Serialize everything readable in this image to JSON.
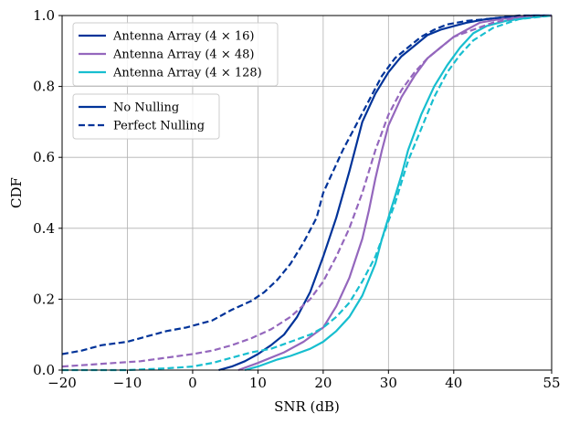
{
  "chart_data": {
    "type": "line",
    "title": "",
    "xlabel": "SNR (dB)",
    "ylabel": "CDF",
    "xlim": [
      -20,
      55
    ],
    "ylim": [
      0,
      1
    ],
    "xticks": [
      -20,
      -10,
      0,
      10,
      20,
      30,
      40,
      55
    ],
    "xtick_labels": [
      "−20",
      "−10",
      "0",
      "10",
      "20",
      "30",
      "40",
      "55"
    ],
    "yticks": [
      0,
      0.2,
      0.4,
      0.6,
      0.8,
      1.0
    ],
    "ytick_labels": [
      "0.0",
      "0.2",
      "0.4",
      "0.6",
      "0.8",
      "1.0"
    ],
    "grid": true,
    "legend_array": {
      "placement": "top-left",
      "entries": [
        {
          "label": "Antenna Array (4 × 16)",
          "color": "#003399"
        },
        {
          "label": "Antenna Array (4 × 48)",
          "color": "#9467bd"
        },
        {
          "label": "Antenna Array (4 × 128)",
          "color": "#17becf"
        }
      ]
    },
    "legend_nulling": {
      "placement": "upper-left",
      "entries": [
        {
          "label": "No Nulling",
          "style": "solid",
          "color": "#003399"
        },
        {
          "label": "Perfect Nulling",
          "style": "dashed",
          "color": "#003399"
        }
      ]
    },
    "series": [
      {
        "name": "Antenna Array (4 × 16) - No Nulling",
        "color": "#003399",
        "dash": false,
        "x": [
          4,
          6,
          8,
          10,
          12,
          14,
          16,
          18,
          20,
          22,
          24,
          25,
          26,
          28,
          30,
          32,
          34,
          36,
          38,
          40,
          42,
          45,
          48,
          52,
          55
        ],
        "y": [
          0.0,
          0.01,
          0.025,
          0.045,
          0.07,
          0.1,
          0.15,
          0.22,
          0.32,
          0.43,
          0.56,
          0.63,
          0.7,
          0.78,
          0.84,
          0.885,
          0.915,
          0.945,
          0.96,
          0.97,
          0.98,
          0.99,
          0.995,
          1.0,
          1.0
        ]
      },
      {
        "name": "Antenna Array (4 × 48) - No Nulling",
        "color": "#9467bd",
        "dash": false,
        "x": [
          7,
          10,
          14,
          17,
          20,
          22,
          24,
          26,
          27,
          28,
          29,
          30,
          32,
          34,
          36,
          38,
          40,
          42,
          44,
          47,
          50,
          55
        ],
        "y": [
          0.0,
          0.02,
          0.05,
          0.08,
          0.12,
          0.18,
          0.26,
          0.37,
          0.45,
          0.54,
          0.62,
          0.69,
          0.77,
          0.83,
          0.88,
          0.91,
          0.94,
          0.96,
          0.98,
          0.99,
          0.995,
          1.0
        ]
      },
      {
        "name": "Antenna Array (4 × 128) - No Nulling",
        "color": "#17becf",
        "dash": false,
        "x": [
          8,
          10,
          13,
          15,
          18,
          20,
          22,
          24,
          26,
          28,
          29,
          30,
          31,
          32,
          33,
          35,
          37,
          39,
          41,
          43,
          45,
          48,
          52,
          55
        ],
        "y": [
          0.0,
          0.01,
          0.03,
          0.04,
          0.06,
          0.08,
          0.11,
          0.15,
          0.21,
          0.3,
          0.37,
          0.43,
          0.49,
          0.55,
          0.62,
          0.72,
          0.8,
          0.86,
          0.91,
          0.95,
          0.97,
          0.985,
          0.995,
          1.0
        ]
      },
      {
        "name": "Antenna Array (4 × 16) - Perfect Nulling",
        "color": "#003399",
        "dash": true,
        "x": [
          -20,
          -17,
          -14,
          -10,
          -7,
          -4,
          -1,
          0,
          3,
          6,
          9,
          11,
          13,
          15,
          17,
          19,
          20,
          21,
          23,
          25,
          27,
          29,
          31,
          33,
          35,
          37,
          39,
          42,
          45,
          50,
          55
        ],
        "y": [
          0.045,
          0.055,
          0.07,
          0.08,
          0.095,
          0.11,
          0.12,
          0.125,
          0.14,
          0.17,
          0.195,
          0.22,
          0.255,
          0.3,
          0.36,
          0.43,
          0.5,
          0.54,
          0.62,
          0.69,
          0.76,
          0.83,
          0.88,
          0.91,
          0.94,
          0.96,
          0.975,
          0.985,
          0.99,
          1.0,
          1.0
        ]
      },
      {
        "name": "Antenna Array (4 × 48) - Perfect Nulling",
        "color": "#9467bd",
        "dash": true,
        "x": [
          -20,
          -16,
          -12,
          -8,
          -4,
          0,
          3,
          6,
          9,
          12,
          15,
          18,
          20,
          22,
          24,
          26,
          28,
          30,
          32,
          34,
          36,
          38,
          40,
          43,
          46,
          50,
          55
        ],
        "y": [
          0.01,
          0.015,
          0.02,
          0.025,
          0.035,
          0.045,
          0.055,
          0.07,
          0.09,
          0.115,
          0.15,
          0.2,
          0.25,
          0.32,
          0.4,
          0.5,
          0.62,
          0.72,
          0.79,
          0.84,
          0.88,
          0.91,
          0.94,
          0.96,
          0.98,
          0.995,
          1.0
        ]
      },
      {
        "name": "Antenna Array (4 × 128) - Perfect Nulling",
        "color": "#17becf",
        "dash": true,
        "x": [
          -20,
          -10,
          -4,
          0,
          3,
          6,
          9,
          12,
          15,
          18,
          20,
          22,
          24,
          26,
          28,
          29,
          30,
          31,
          32,
          33,
          35,
          37,
          39,
          41,
          43,
          46,
          50,
          55
        ],
        "y": [
          0.0,
          0.0,
          0.005,
          0.01,
          0.02,
          0.035,
          0.05,
          0.06,
          0.08,
          0.1,
          0.12,
          0.15,
          0.19,
          0.25,
          0.32,
          0.37,
          0.42,
          0.47,
          0.53,
          0.59,
          0.68,
          0.77,
          0.84,
          0.89,
          0.93,
          0.965,
          0.99,
          1.0
        ]
      }
    ]
  }
}
